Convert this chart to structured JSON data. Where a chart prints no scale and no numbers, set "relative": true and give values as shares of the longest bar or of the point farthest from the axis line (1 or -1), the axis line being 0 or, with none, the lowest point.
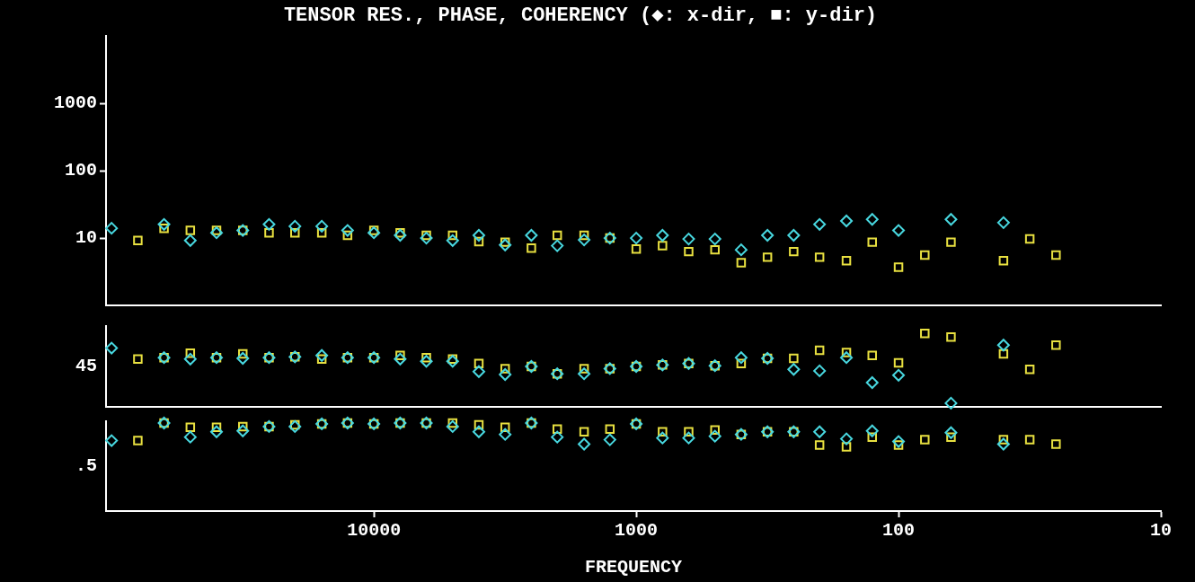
{
  "chart_data": [
    {
      "type": "scatter",
      "title": "TENSOR RES., PHASE, COHERENCY (◆: x-dir, ■: y-dir)",
      "log": "xy",
      "tick_labels": "y",
      "xlim": [
        105000,
        10
      ],
      "xticks": [
        10000,
        1000,
        100,
        10
      ],
      "ylim": [
        1,
        10000
      ],
      "yticks": [
        10,
        100,
        1000
      ],
      "x": [
        100000,
        79400,
        63100,
        50100,
        39800,
        31600,
        25100,
        20000,
        15800,
        12600,
        10000,
        7940,
        6310,
        5010,
        3980,
        3160,
        2510,
        2000,
        1580,
        1260,
        1000,
        794,
        631,
        501,
        398,
        316,
        251,
        200,
        158,
        126,
        100,
        79.4,
        63.1,
        50.1,
        39.8,
        31.6,
        25.1
      ],
      "series": [
        {
          "color": "#48d8e0",
          "marker": "diamond",
          "values": [
            14,
            null,
            16,
            9.2,
            12,
            13,
            16,
            15,
            15,
            13,
            12,
            11,
            10,
            9.2,
            11,
            7.9,
            11,
            7.7,
            9.4,
            10,
            10,
            11,
            9.7,
            9.7,
            6.7,
            11,
            11,
            16,
            18,
            19,
            13,
            null,
            19,
            null,
            17,
            null,
            null
          ]
        },
        {
          "color": "#e8e040",
          "marker": "square",
          "values": [
            null,
            9.2,
            14,
            13,
            13,
            13,
            12,
            12,
            12,
            11,
            13,
            12,
            11,
            11,
            8.9,
            8.7,
            7.1,
            11,
            11,
            10,
            6.9,
            7.7,
            6.3,
            6.7,
            4.3,
            5.2,
            6.3,
            5.2,
            4.6,
            8.7,
            3.7,
            5.6,
            8.7,
            null,
            4.6,
            9.7,
            5.6
          ]
        }
      ]
    },
    {
      "type": "scatter",
      "log": "x",
      "relative": true,
      "tick_labels": false,
      "annotations": [
        "45"
      ],
      "xlim": [
        105000,
        10
      ],
      "xticks": [
        10000,
        1000,
        100,
        10
      ],
      "x": [
        100000,
        79400,
        63100,
        50100,
        39800,
        31600,
        25100,
        20000,
        15800,
        12600,
        10000,
        7940,
        6310,
        5010,
        3980,
        3160,
        2510,
        2000,
        1580,
        1260,
        1000,
        794,
        631,
        501,
        398,
        316,
        251,
        200,
        158,
        126,
        100,
        79.4,
        63.1,
        50.1,
        39.8,
        31.6,
        25.1
      ],
      "series": [
        {
          "color": "#48d8e0",
          "marker": "diamond",
          "values": [
            0.8,
            null,
            0.67,
            0.65,
            0.67,
            0.66,
            0.67,
            0.68,
            0.7,
            0.67,
            0.67,
            0.65,
            0.62,
            0.62,
            0.48,
            0.44,
            0.55,
            0.45,
            0.45,
            0.52,
            0.55,
            0.57,
            0.59,
            0.56,
            0.67,
            0.66,
            0.51,
            0.49,
            0.67,
            0.33,
            0.43,
            null,
            0.05,
            null,
            0.84,
            null,
            null
          ]
        },
        {
          "color": "#e8e040",
          "marker": "square",
          "values": [
            null,
            0.65,
            0.67,
            0.73,
            0.67,
            0.72,
            0.67,
            0.68,
            0.65,
            0.67,
            0.67,
            0.7,
            0.67,
            0.65,
            0.59,
            0.52,
            0.55,
            0.45,
            0.52,
            0.52,
            0.55,
            0.57,
            0.59,
            0.56,
            0.59,
            0.66,
            0.66,
            0.77,
            0.74,
            0.7,
            0.6,
            1,
            0.95,
            null,
            0.72,
            0.51,
            0.84
          ]
        }
      ]
    },
    {
      "type": "scatter",
      "log": "x",
      "relative": true,
      "tick_labels": "x",
      "annotations": [
        ".5"
      ],
      "xlabel": "FREQUENCY",
      "xlim": [
        105000,
        10
      ],
      "xticks": [
        10000,
        1000,
        100,
        10
      ],
      "x": [
        100000,
        79400,
        63100,
        50100,
        39800,
        31600,
        25100,
        20000,
        15800,
        12600,
        10000,
        7940,
        6310,
        5010,
        3980,
        3160,
        2510,
        2000,
        1580,
        1260,
        1000,
        794,
        631,
        501,
        398,
        316,
        251,
        200,
        158,
        126,
        100,
        79.4,
        63.1,
        50.1,
        39.8,
        31.6,
        25.1
      ],
      "series": [
        {
          "color": "#48d8e0",
          "marker": "diamond",
          "values": [
            0.8,
            null,
            1,
            0.84,
            0.9,
            0.91,
            0.96,
            0.96,
            0.99,
            1,
            0.99,
            1,
            1,
            0.96,
            0.9,
            0.87,
            1,
            0.84,
            0.76,
            0.81,
            0.99,
            0.83,
            0.83,
            0.85,
            0.87,
            0.9,
            0.9,
            0.9,
            0.82,
            0.91,
            0.79,
            null,
            0.89,
            null,
            0.76,
            null,
            null
          ]
        },
        {
          "color": "#e8e040",
          "marker": "square",
          "values": [
            null,
            0.8,
            1,
            0.95,
            0.95,
            0.96,
            0.96,
            0.98,
            0.99,
            1,
            0.99,
            1,
            1,
            1,
            0.98,
            0.95,
            1,
            0.93,
            0.9,
            0.93,
            0.99,
            0.9,
            0.9,
            0.92,
            0.87,
            0.9,
            0.9,
            0.75,
            0.73,
            0.84,
            0.75,
            0.81,
            0.84,
            null,
            0.81,
            0.81,
            0.76
          ]
        }
      ]
    }
  ]
}
